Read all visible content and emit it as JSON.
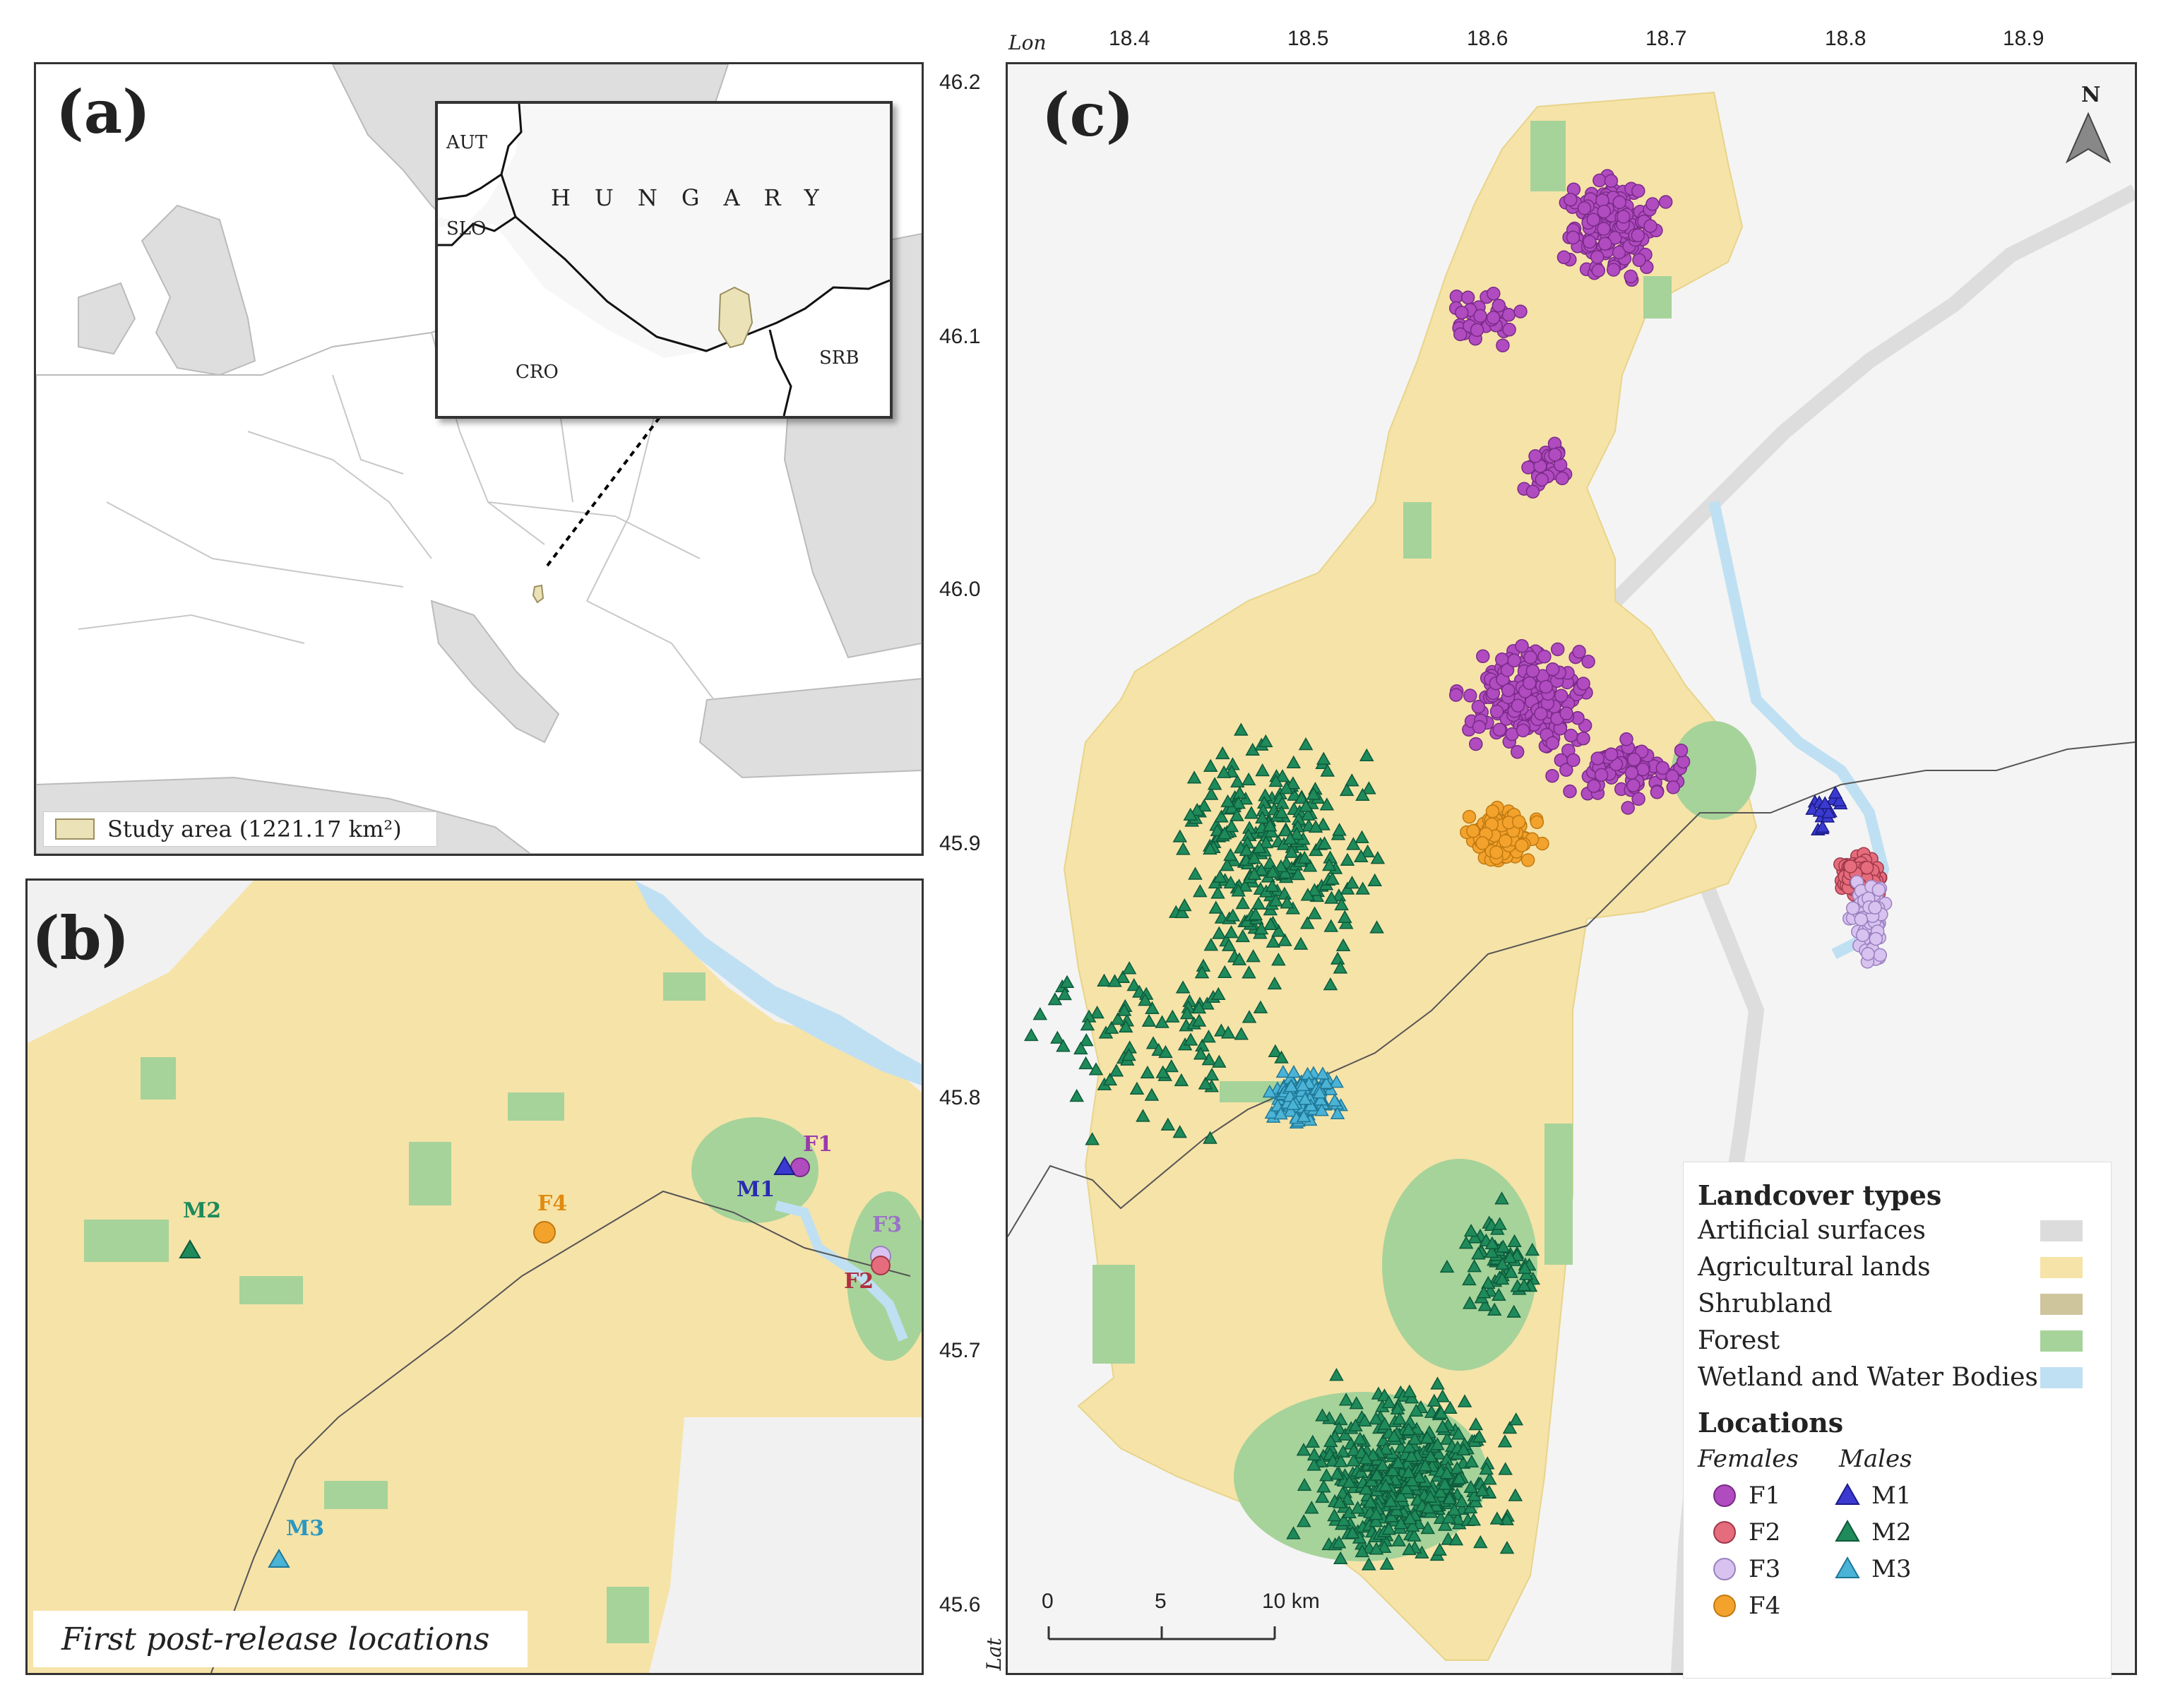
{
  "panel_a": {
    "label": "(a)",
    "inset": {
      "countries": [
        "AUT",
        "SLO",
        "CRO",
        "SRB"
      ],
      "title": "HUNGARY"
    },
    "legend": {
      "text": "Study area (1221.17 km²)",
      "color": "#ece2b8"
    }
  },
  "panel_b": {
    "label": "(b)",
    "caption": "First post-release locations",
    "markers": [
      {
        "id": "M2",
        "shape": "triangle",
        "color": "#1f8a5a"
      },
      {
        "id": "F1",
        "shape": "circle",
        "color": "#b04bc0"
      },
      {
        "id": "M1",
        "shape": "triangle",
        "color": "#3a3ad0"
      },
      {
        "id": "F4",
        "shape": "circle",
        "color": "#f3a22c"
      },
      {
        "id": "F3",
        "shape": "circle",
        "color": "#d8c2ef"
      },
      {
        "id": "F2",
        "shape": "circle",
        "color": "#e46c7c"
      },
      {
        "id": "M3",
        "shape": "triangle",
        "color": "#4bb3d5"
      }
    ]
  },
  "panel_c": {
    "label": "(c)",
    "north": "N",
    "axes": {
      "lon_name": "Lon",
      "lat_name": "Lat",
      "lon_ticks": [
        "18.4",
        "18.5",
        "18.6",
        "18.7",
        "18.8",
        "18.9"
      ],
      "lat_ticks": [
        "46.2",
        "46.1",
        "46.0",
        "45.9",
        "45.8",
        "45.7",
        "45.6"
      ]
    },
    "scale_bar": {
      "labels": [
        "0",
        "5",
        "10 km"
      ]
    },
    "legend": {
      "landcover_title": "Landcover types",
      "landcover": [
        {
          "label": "Artificial surfaces",
          "color": "#dcdcdc"
        },
        {
          "label": "Agricultural lands",
          "color": "#f6e3a8"
        },
        {
          "label": "Shrubland",
          "color": "#cfc59c"
        },
        {
          "label": "Forest",
          "color": "#a6d39a"
        },
        {
          "label": "Wetland and Water Bodies",
          "color": "#bfe0f3"
        }
      ],
      "locations_title": "Locations",
      "females_label": "Females",
      "males_label": "Males",
      "females": [
        {
          "id": "F1",
          "color": "#b04bc0"
        },
        {
          "id": "F2",
          "color": "#e46c7c"
        },
        {
          "id": "F3",
          "color": "#d8c2ef"
        },
        {
          "id": "F4",
          "color": "#f3a22c"
        }
      ],
      "males": [
        {
          "id": "M1",
          "color": "#3a3ad0"
        },
        {
          "id": "M2",
          "color": "#1f8a5a"
        },
        {
          "id": "M3",
          "color": "#4bb3d5"
        }
      ]
    }
  }
}
